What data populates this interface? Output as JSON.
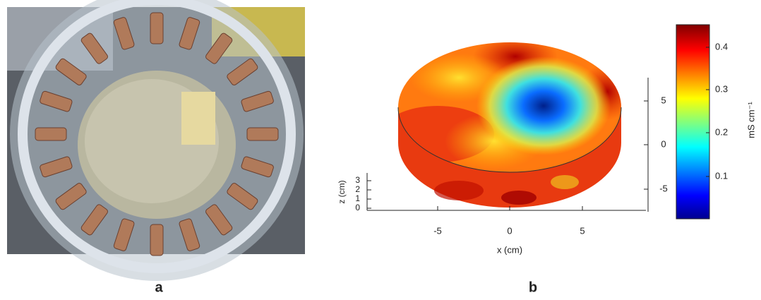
{
  "panels": [
    {
      "label": "a"
    },
    {
      "label": "b",
      "x_axis": {
        "label": "x (cm)",
        "ticks": [
          "-5",
          "0",
          "5"
        ]
      },
      "y_axis": {
        "ticks": [
          "5",
          "0",
          "-5"
        ]
      },
      "z_axis": {
        "label": "z (cm)",
        "ticks": [
          "0",
          "1",
          "2",
          "3"
        ]
      },
      "colorbar": {
        "label": "mS cm⁻¹",
        "ticks": [
          "0.4",
          "0.3",
          "0.2",
          "0.1"
        ]
      }
    }
  ]
}
